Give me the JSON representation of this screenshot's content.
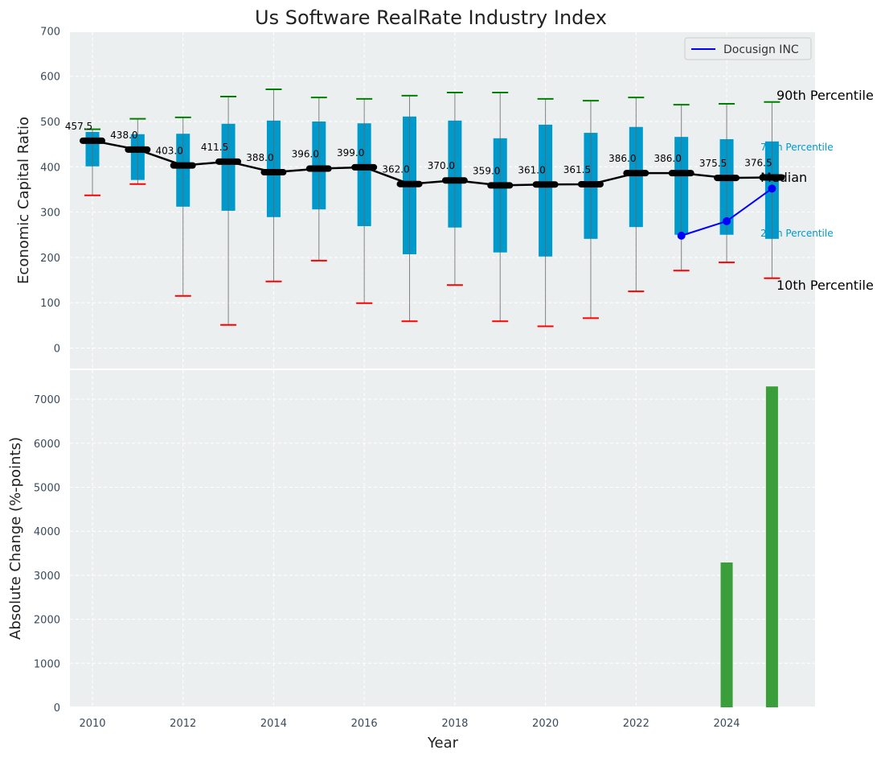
{
  "chart_data": [
    {
      "type": "box",
      "title": "Us Software RealRate Industry Index",
      "xlabel": "",
      "ylabel": "Economic Capital Ratio",
      "ylim": [
        -50,
        700
      ],
      "yticks": [
        0,
        100,
        200,
        300,
        400,
        500,
        600,
        700
      ],
      "grid": true,
      "legend": {
        "placement": "top-right",
        "entries": [
          "Docusign INC"
        ]
      },
      "years": [
        2010,
        2011,
        2012,
        2013,
        2014,
        2015,
        2016,
        2017,
        2018,
        2019,
        2020,
        2021,
        2022,
        2023,
        2024,
        2025
      ],
      "p90": [
        483,
        506,
        509,
        555,
        571,
        553,
        550,
        557,
        564,
        564,
        550,
        546,
        553,
        537,
        539,
        543
      ],
      "p75": [
        477,
        472,
        473,
        495,
        502,
        500,
        496,
        511,
        502,
        463,
        493,
        475,
        488,
        466,
        461,
        456
      ],
      "median": [
        457.5,
        438.0,
        403.0,
        411.5,
        388.0,
        396.0,
        399.0,
        362.0,
        370.0,
        359.0,
        361.0,
        361.5,
        386.0,
        386.0,
        375.5,
        376.5
      ],
      "median_labels": [
        "457.5",
        "438.0",
        "403.0",
        "411.5",
        "388.0",
        "396.0",
        "399.0",
        "362.0",
        "370.0",
        "359.0",
        "361.0",
        "361.5",
        "386.0",
        "386.0",
        "375.5",
        "376.5"
      ],
      "p25": [
        401,
        371,
        312,
        303,
        289,
        306,
        269,
        207,
        266,
        211,
        202,
        241,
        267,
        250,
        250,
        241
      ],
      "p10": [
        337,
        362,
        115,
        51,
        147,
        193,
        99,
        59,
        139,
        59,
        48,
        66,
        125,
        171,
        189,
        154
      ],
      "company": {
        "name": "Docusign INC",
        "years": [
          2023,
          2024,
          2025
        ],
        "values": [
          248,
          280,
          352
        ],
        "color": "#0000ff"
      },
      "annotations": {
        "p90": "90th Percentile",
        "p75": "75th Percentile",
        "median": "Median",
        "p25": "25th Percentile",
        "p10": "10th Percentile"
      },
      "colors": {
        "box": "#0099cc",
        "p90": "#008000",
        "p10": "#ff0000",
        "median": "#000000"
      }
    },
    {
      "type": "bar",
      "xlabel": "Year",
      "ylabel": "Absolute Change (%-points)",
      "ylim": [
        0,
        7700
      ],
      "yticks": [
        0,
        1000,
        2000,
        3000,
        4000,
        5000,
        6000,
        7000
      ],
      "xticks": [
        2010,
        2012,
        2014,
        2016,
        2018,
        2020,
        2022,
        2024
      ],
      "categories": [
        2024,
        2025
      ],
      "values": [
        3290,
        7290
      ],
      "color": "#3a9e3a",
      "grid": true
    }
  ]
}
